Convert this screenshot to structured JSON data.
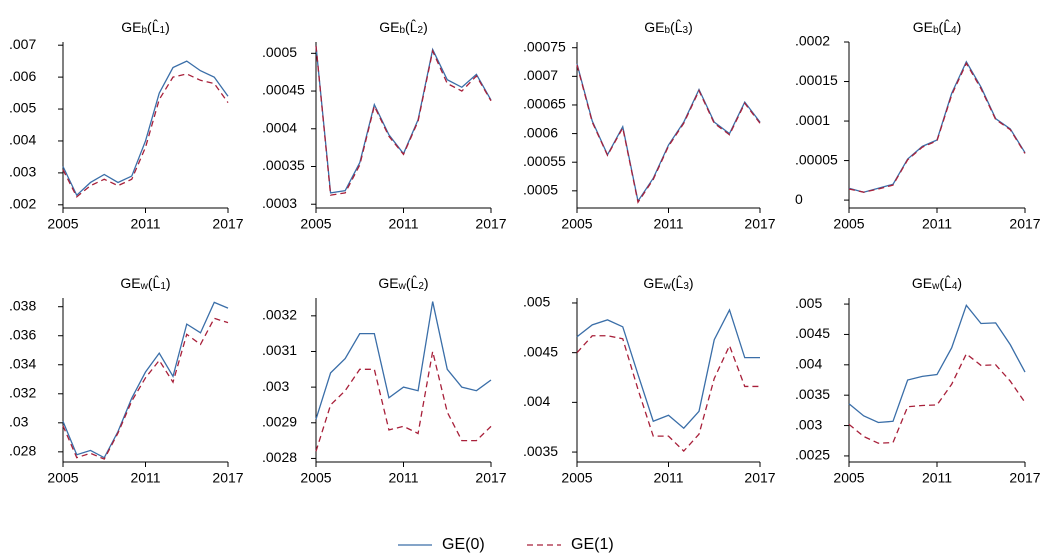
{
  "legend": [
    {
      "name": "GE(0)",
      "color": "#3a6ea8",
      "dash": false
    },
    {
      "name": "GE(1)",
      "color": "#a8203a",
      "dash": true
    }
  ],
  "chart_data": [
    {
      "type": "line",
      "title": [
        "GE",
        "b",
        "(L̂",
        "1",
        ")"
      ],
      "x": [
        2005,
        2006,
        2007,
        2008,
        2009,
        2010,
        2011,
        2012,
        2013,
        2014,
        2015,
        2016,
        2017
      ],
      "xlim": [
        2005,
        2017
      ],
      "xticks": [
        2005,
        2011,
        2017
      ],
      "ylim": [
        0.0019,
        0.0071
      ],
      "yticks": [
        {
          "value": 0.002,
          "label": ".002"
        },
        {
          "value": 0.003,
          "label": ".003"
        },
        {
          "value": 0.004,
          "label": ".004"
        },
        {
          "value": 0.005,
          "label": ".005"
        },
        {
          "value": 0.006,
          "label": ".006"
        },
        {
          "value": 0.007,
          "label": ".007"
        }
      ],
      "series": [
        {
          "values": [
            0.0032,
            0.0023,
            0.0027,
            0.00295,
            0.0027,
            0.0029,
            0.004,
            0.0055,
            0.0063,
            0.0065,
            0.0062,
            0.006,
            0.0054
          ]
        },
        {
          "values": [
            0.0031,
            0.00225,
            0.0026,
            0.0028,
            0.0026,
            0.0028,
            0.0038,
            0.0053,
            0.006,
            0.0061,
            0.0059,
            0.0058,
            0.0052
          ]
        }
      ]
    },
    {
      "type": "line",
      "title": [
        "GE",
        "b",
        "(L̂",
        "2",
        ")"
      ],
      "x": [
        2005,
        2006,
        2007,
        2008,
        2009,
        2010,
        2011,
        2012,
        2013,
        2014,
        2015,
        2016,
        2017
      ],
      "xlim": [
        2005,
        2017
      ],
      "xticks": [
        2005,
        2011,
        2017
      ],
      "ylim": [
        0.000295,
        0.000515
      ],
      "yticks": [
        {
          "value": 0.0003,
          "label": ".0003"
        },
        {
          "value": 0.00035,
          "label": ".00035"
        },
        {
          "value": 0.0004,
          "label": ".0004"
        },
        {
          "value": 0.00045,
          "label": ".00045"
        },
        {
          "value": 0.0005,
          "label": ".0005"
        }
      ],
      "series": [
        {
          "values": [
            0.00051,
            0.000315,
            0.000318,
            0.000355,
            0.000432,
            0.000392,
            0.000367,
            0.000412,
            0.000505,
            0.000465,
            0.000455,
            0.000472,
            0.000438
          ]
        },
        {
          "values": [
            0.00051,
            0.000312,
            0.000315,
            0.000352,
            0.00043,
            0.00039,
            0.000366,
            0.00041,
            0.000503,
            0.00046,
            0.00045,
            0.00047,
            0.000437
          ]
        }
      ]
    },
    {
      "type": "line",
      "title": [
        "GE",
        "b",
        "(L̂",
        "3",
        ")"
      ],
      "x": [
        2005,
        2006,
        2007,
        2008,
        2009,
        2010,
        2011,
        2012,
        2013,
        2014,
        2015,
        2016,
        2017
      ],
      "xlim": [
        2005,
        2017
      ],
      "xticks": [
        2005,
        2011,
        2017
      ],
      "ylim": [
        0.00047,
        0.00076
      ],
      "yticks": [
        {
          "value": 0.0005,
          "label": ".0005"
        },
        {
          "value": 0.00055,
          "label": ".00055"
        },
        {
          "value": 0.0006,
          "label": ".0006"
        },
        {
          "value": 0.00065,
          "label": ".00065"
        },
        {
          "value": 0.0007,
          "label": ".0007"
        },
        {
          "value": 0.00075,
          "label": ".00075"
        }
      ],
      "series": [
        {
          "values": [
            0.000722,
            0.000622,
            0.000563,
            0.000612,
            0.000482,
            0.000522,
            0.00058,
            0.00062,
            0.000677,
            0.00062,
            0.0006,
            0.000655,
            0.00062
          ]
        },
        {
          "values": [
            0.00072,
            0.00062,
            0.000562,
            0.00061,
            0.00048,
            0.00052,
            0.000578,
            0.000618,
            0.000675,
            0.000618,
            0.000598,
            0.000653,
            0.000618
          ]
        }
      ]
    },
    {
      "type": "line",
      "title": [
        "GE",
        "b",
        "(L̂",
        "4",
        ")"
      ],
      "x": [
        2005,
        2006,
        2007,
        2008,
        2009,
        2010,
        2011,
        2012,
        2013,
        2014,
        2015,
        2016,
        2017
      ],
      "xlim": [
        2005,
        2017
      ],
      "xticks": [
        2005,
        2011,
        2017
      ],
      "ylim": [
        -1e-05,
        0.0002
      ],
      "yticks": [
        0,
        {
          "value": 5e-05,
          "label": ".00005"
        },
        {
          "value": 0.0001,
          "label": ".0001"
        },
        {
          "value": 0.00015,
          "label": ".00015"
        },
        {
          "value": 0.0002,
          "label": ".0002"
        }
      ],
      "series": [
        {
          "values": [
            1.5e-05,
            1e-05,
            1.5e-05,
            2e-05,
            5.2e-05,
            6.8e-05,
            7.6e-05,
            0.000135,
            0.000175,
            0.000143,
            0.000103,
            9e-05,
            6e-05
          ]
        },
        {
          "values": [
            1.4e-05,
            1e-05,
            1.4e-05,
            1.9e-05,
            5.1e-05,
            6.7e-05,
            7.5e-05,
            0.000133,
            0.000173,
            0.000141,
            0.000102,
            8.9e-05,
            5.9e-05
          ]
        }
      ]
    },
    {
      "type": "line",
      "title": [
        "GE",
        "w",
        "(L̂",
        "1",
        ")"
      ],
      "x": [
        2005,
        2006,
        2007,
        2008,
        2009,
        2010,
        2011,
        2012,
        2013,
        2014,
        2015,
        2016,
        2017
      ],
      "xlim": [
        2005,
        2017
      ],
      "xticks": [
        2005,
        2011,
        2017
      ],
      "ylim": [
        0.0273,
        0.0386
      ],
      "yticks": [
        {
          "value": 0.028,
          "label": ".028"
        },
        {
          "value": 0.03,
          "label": ".03"
        },
        {
          "value": 0.032,
          "label": ".032"
        },
        {
          "value": 0.034,
          "label": ".034"
        },
        {
          "value": 0.036,
          "label": ".036"
        },
        {
          "value": 0.038,
          "label": ".038"
        }
      ],
      "series": [
        {
          "values": [
            0.0301,
            0.0278,
            0.0281,
            0.0276,
            0.0294,
            0.0317,
            0.0335,
            0.0348,
            0.0332,
            0.0368,
            0.0362,
            0.0383,
            0.0379
          ]
        },
        {
          "values": [
            0.0298,
            0.0276,
            0.0279,
            0.0275,
            0.0293,
            0.0315,
            0.0331,
            0.0343,
            0.0328,
            0.0361,
            0.0354,
            0.0372,
            0.0369
          ]
        }
      ]
    },
    {
      "type": "line",
      "title": [
        "GE",
        "w",
        "(L̂",
        "2",
        ")"
      ],
      "x": [
        2005,
        2006,
        2007,
        2008,
        2009,
        2010,
        2011,
        2012,
        2013,
        2014,
        2015,
        2016,
        2017
      ],
      "xlim": [
        2005,
        2017
      ],
      "xticks": [
        2005,
        2011,
        2017
      ],
      "ylim": [
        0.00279,
        0.00325
      ],
      "yticks": [
        {
          "value": 0.0028,
          "label": ".0028"
        },
        {
          "value": 0.0029,
          "label": ".0029"
        },
        {
          "value": 0.003,
          "label": ".003"
        },
        {
          "value": 0.0031,
          "label": ".0031"
        },
        {
          "value": 0.0032,
          "label": ".0032"
        }
      ],
      "series": [
        {
          "values": [
            0.00291,
            0.00304,
            0.00308,
            0.00315,
            0.00315,
            0.00297,
            0.003,
            0.00299,
            0.00324,
            0.00305,
            0.003,
            0.00299,
            0.00302
          ]
        },
        {
          "values": [
            0.00282,
            0.00295,
            0.00299,
            0.00305,
            0.00305,
            0.00288,
            0.00289,
            0.00287,
            0.0031,
            0.00293,
            0.00285,
            0.00285,
            0.00289
          ]
        }
      ]
    },
    {
      "type": "line",
      "title": [
        "GE",
        "w",
        "(L̂",
        "3",
        ")"
      ],
      "x": [
        2005,
        2006,
        2007,
        2008,
        2009,
        2010,
        2011,
        2012,
        2013,
        2014,
        2015,
        2016,
        2017
      ],
      "xlim": [
        2005,
        2017
      ],
      "xticks": [
        2005,
        2011,
        2017
      ],
      "ylim": [
        0.0034,
        0.00505
      ],
      "yticks": [
        {
          "value": 0.0035,
          "label": ".0035"
        },
        {
          "value": 0.004,
          "label": ".004"
        },
        {
          "value": 0.0045,
          "label": ".0045"
        },
        {
          "value": 0.005,
          "label": ".005"
        }
      ],
      "series": [
        {
          "values": [
            0.00466,
            0.00478,
            0.00483,
            0.00476,
            0.00428,
            0.00381,
            0.00387,
            0.00374,
            0.00391,
            0.00463,
            0.00493,
            0.00445,
            0.00445
          ]
        },
        {
          "values": [
            0.0045,
            0.00467,
            0.00467,
            0.00464,
            0.00413,
            0.00366,
            0.00366,
            0.00351,
            0.00368,
            0.00424,
            0.00457,
            0.00416,
            0.00416
          ]
        }
      ]
    },
    {
      "type": "line",
      "title": [
        "GE",
        "w",
        "(L̂",
        "4",
        ")"
      ],
      "x": [
        2005,
        2006,
        2007,
        2008,
        2009,
        2010,
        2011,
        2012,
        2013,
        2014,
        2015,
        2016,
        2017
      ],
      "xlim": [
        2005,
        2017
      ],
      "xticks": [
        2005,
        2011,
        2017
      ],
      "ylim": [
        0.0024,
        0.0051
      ],
      "yticks": [
        {
          "value": 0.0025,
          "label": ".0025"
        },
        {
          "value": 0.003,
          "label": ".003"
        },
        {
          "value": 0.0035,
          "label": ".0035"
        },
        {
          "value": 0.004,
          "label": ".004"
        },
        {
          "value": 0.0045,
          "label": ".0045"
        },
        {
          "value": 0.005,
          "label": ".005"
        }
      ],
      "series": [
        {
          "values": [
            0.00336,
            0.00316,
            0.00305,
            0.00307,
            0.00375,
            0.00381,
            0.00384,
            0.00428,
            0.00498,
            0.00468,
            0.00469,
            0.00433,
            0.00388
          ]
        },
        {
          "values": [
            0.00302,
            0.00282,
            0.00271,
            0.00272,
            0.00331,
            0.00333,
            0.00334,
            0.00368,
            0.00418,
            0.00399,
            0.004,
            0.00373,
            0.00338
          ]
        }
      ]
    }
  ]
}
